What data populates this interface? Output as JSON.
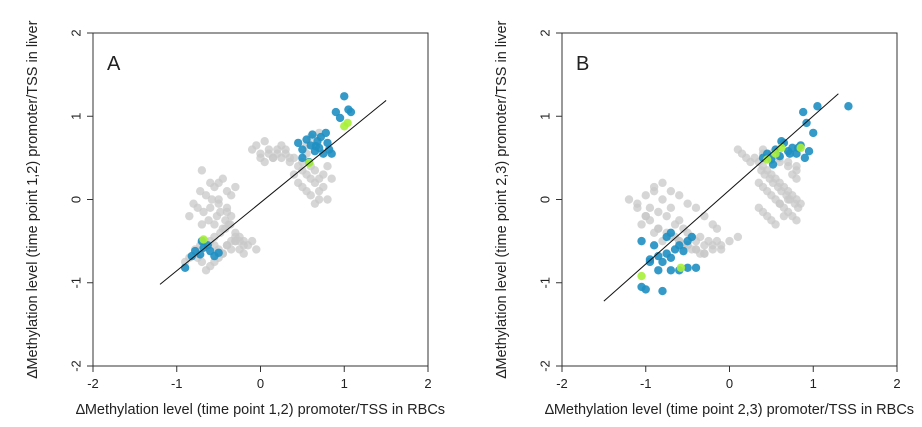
{
  "colors": {
    "gray": "#c8c8c8",
    "blue": "#1f8fc2",
    "green": "#a8f03a",
    "line": "#111111"
  },
  "chart_data": [
    {
      "type": "scatter",
      "panel_label": "A",
      "xlabel": "∆Methylation level (time point 1,2) promoter/TSS in RBCs",
      "ylabel": "∆Methylation level (time point 1,2) promoter/TSS in liver",
      "xlim": [
        -2,
        2
      ],
      "ylim": [
        -2,
        2
      ],
      "xticks": [
        -2,
        -1,
        0,
        1,
        2
      ],
      "yticks": [
        -2,
        -1,
        0,
        1,
        2
      ],
      "grid": false,
      "fit_line": {
        "x": [
          -1.2,
          1.5
        ],
        "y": [
          -1.02,
          1.19
        ]
      },
      "series": [
        {
          "color": "gray",
          "x": [
            -0.85,
            -0.8,
            -0.75,
            -0.72,
            -0.7,
            -0.68,
            -0.65,
            -0.62,
            -0.6,
            -0.58,
            -0.55,
            -0.52,
            -0.5,
            -0.48,
            -0.45,
            -0.42,
            -0.4,
            -0.38,
            -0.35,
            -0.3,
            -0.25,
            -0.2,
            -0.6,
            -0.55,
            -0.5,
            -0.45,
            -0.4,
            -0.35,
            -0.3,
            -0.75,
            -0.7,
            -0.65,
            -0.6,
            -0.55,
            -0.5,
            -0.45,
            -0.4,
            -0.35,
            -0.3,
            -0.25,
            -0.9,
            -0.85,
            -0.78,
            -0.72,
            -0.66,
            -0.55,
            -0.48,
            -0.42,
            -0.36,
            0.0,
            0.05,
            0.1,
            0.15,
            0.2,
            0.25,
            0.3,
            0.35,
            0.4,
            0.45,
            0.5,
            0.55,
            0.6,
            0.65,
            0.7,
            0.75,
            0.8,
            0.4,
            0.45,
            0.5,
            0.55,
            0.6,
            0.65,
            0.7,
            0.5,
            0.55,
            0.6,
            0.65,
            0.7,
            0.75,
            -0.1,
            -0.05,
            0.0,
            0.05,
            0.1,
            0.15,
            -0.7,
            -0.6,
            -0.5,
            -0.4,
            -0.3,
            -0.2,
            -0.1,
            -0.05,
            -0.35,
            -0.3,
            -0.4,
            -0.45,
            -0.5,
            -0.55,
            0.8,
            0.85,
            0.7,
            0.6,
            0.55,
            -0.15,
            -0.2,
            -0.25,
            0.3,
            0.35,
            0.25,
            0.2
          ],
          "y": [
            -0.2,
            -0.05,
            -0.1,
            0.1,
            -0.3,
            -0.15,
            0.05,
            -0.25,
            -0.1,
            0.0,
            -0.3,
            -0.2,
            -0.05,
            -0.15,
            -0.35,
            -0.25,
            -0.1,
            -0.3,
            -0.2,
            -0.4,
            -0.45,
            -0.5,
            -0.5,
            -0.55,
            -0.6,
            -0.65,
            -0.55,
            -0.6,
            -0.5,
            -0.7,
            -0.75,
            -0.85,
            -0.8,
            -0.75,
            -0.7,
            -0.65,
            -0.55,
            -0.5,
            -0.45,
            -0.6,
            -0.75,
            -0.7,
            -0.6,
            -0.55,
            -0.5,
            -0.45,
            -0.4,
            -0.35,
            -0.3,
            0.5,
            0.45,
            0.55,
            0.5,
            0.6,
            0.5,
            0.55,
            0.45,
            0.5,
            0.4,
            0.35,
            0.3,
            0.25,
            0.2,
            0.1,
            0.15,
            0.0,
            0.3,
            0.2,
            0.15,
            0.1,
            0.05,
            -0.05,
            0.0,
            0.45,
            0.55,
            0.4,
            0.35,
            0.25,
            0.3,
            0.6,
            0.65,
            0.55,
            0.7,
            0.6,
            0.5,
            0.35,
            0.2,
            0.0,
            -0.15,
            -0.5,
            -0.55,
            -0.5,
            -0.6,
            0.05,
            0.15,
            0.1,
            0.25,
            0.2,
            0.15,
            0.4,
            0.25,
            0.8,
            0.75,
            0.65,
            -0.55,
            -0.65,
            -0.5,
            0.6,
            0.5,
            0.65,
            0.55
          ]
        },
        {
          "color": "blue",
          "x": [
            -0.9,
            -0.82,
            -0.78,
            -0.72,
            -0.68,
            -0.63,
            -0.6,
            -0.55,
            -0.5,
            -0.7,
            0.45,
            0.5,
            0.55,
            0.6,
            0.62,
            0.65,
            0.68,
            0.7,
            0.72,
            0.75,
            0.78,
            0.8,
            0.82,
            0.85,
            0.9,
            0.95,
            1.0,
            1.05,
            1.08,
            0.5,
            0.58,
            0.66
          ],
          "y": [
            -0.82,
            -0.68,
            -0.62,
            -0.66,
            -0.58,
            -0.55,
            -0.62,
            -0.68,
            -0.64,
            -0.5,
            0.68,
            0.6,
            0.72,
            0.65,
            0.78,
            0.58,
            0.7,
            0.62,
            0.75,
            0.55,
            0.8,
            0.68,
            0.6,
            0.55,
            1.05,
            0.98,
            1.24,
            1.08,
            1.05,
            0.5,
            0.45,
            0.64
          ]
        },
        {
          "color": "green",
          "x": [
            -0.68,
            0.58,
            1.0,
            1.04
          ],
          "y": [
            -0.48,
            0.44,
            0.88,
            0.92
          ]
        }
      ]
    },
    {
      "type": "scatter",
      "panel_label": "B",
      "xlabel": "∆Methylation level (time point 2,3) promoter/TSS in RBCs",
      "ylabel": "∆Methylation level (time point 2,3) promoter/TSS in liver",
      "xlim": [
        -2,
        2
      ],
      "ylim": [
        -2,
        2
      ],
      "xticks": [
        -2,
        -1,
        0,
        1,
        2
      ],
      "yticks": [
        -2,
        -1,
        0,
        1,
        2
      ],
      "grid": false,
      "fit_line": {
        "x": [
          -1.5,
          1.3
        ],
        "y": [
          -1.22,
          1.27
        ]
      },
      "series": [
        {
          "color": "gray",
          "x": [
            -1.2,
            -1.1,
            -1.0,
            -0.95,
            -0.9,
            -0.85,
            -0.8,
            -0.75,
            -0.7,
            -0.65,
            -0.6,
            -0.55,
            -0.5,
            -0.45,
            -0.4,
            -0.35,
            -0.3,
            -0.25,
            -0.2,
            -0.15,
            -0.1,
            -1.05,
            -1.0,
            -0.9,
            -0.85,
            -0.8,
            -0.7,
            -0.6,
            -0.5,
            -0.4,
            -0.3,
            -0.9,
            -0.8,
            -0.7,
            -0.6,
            -0.5,
            -0.4,
            -0.3,
            -0.2,
            -0.15,
            -1.1,
            -1.0,
            -0.95,
            -0.85,
            -0.75,
            -0.65,
            -0.55,
            -0.45,
            -0.35,
            0.35,
            0.4,
            0.45,
            0.5,
            0.55,
            0.6,
            0.65,
            0.7,
            0.75,
            0.8,
            0.85,
            0.35,
            0.4,
            0.45,
            0.5,
            0.55,
            0.6,
            0.65,
            0.7,
            0.75,
            0.8,
            0.35,
            0.4,
            0.45,
            0.5,
            0.55,
            0.6,
            0.65,
            0.7,
            0.75,
            0.8,
            0.38,
            0.42,
            0.48,
            0.52,
            0.58,
            0.62,
            0.68,
            0.72,
            0.78,
            0.82,
            0.4,
            0.5,
            0.6,
            0.7,
            0.8,
            0.4,
            0.5,
            0.6,
            0.7,
            0.8,
            0.1,
            0.15,
            0.2,
            0.25,
            0.3,
            -0.6,
            -0.5,
            -0.4,
            -0.3,
            -0.2,
            -0.1,
            0.0,
            0.1
          ],
          "y": [
            0.0,
            -0.05,
            0.05,
            -0.1,
            0.1,
            -0.15,
            0.0,
            -0.2,
            -0.1,
            -0.3,
            -0.25,
            -0.35,
            -0.4,
            -0.45,
            -0.5,
            -0.45,
            -0.55,
            -0.5,
            -0.55,
            -0.5,
            -0.6,
            -0.3,
            -0.2,
            -0.4,
            -0.35,
            -0.5,
            -0.45,
            -0.5,
            -0.55,
            -0.6,
            -0.65,
            0.15,
            0.2,
            0.1,
            0.05,
            -0.05,
            -0.1,
            -0.2,
            -0.3,
            -0.35,
            -0.1,
            -0.2,
            -0.25,
            -0.35,
            -0.4,
            -0.45,
            -0.55,
            -0.6,
            -0.65,
            0.45,
            0.4,
            0.35,
            0.3,
            0.25,
            0.2,
            0.15,
            0.1,
            0.05,
            0.0,
            -0.05,
            0.2,
            0.15,
            0.1,
            0.05,
            0.0,
            -0.05,
            -0.1,
            -0.15,
            -0.2,
            -0.25,
            -0.1,
            -0.15,
            -0.2,
            -0.25,
            -0.3,
            -0.05,
            -0.2,
            0.0,
            0.3,
            0.25,
            0.35,
            0.3,
            0.25,
            0.2,
            0.15,
            0.1,
            0.05,
            0.0,
            -0.05,
            -0.1,
            0.55,
            0.5,
            0.45,
            0.4,
            0.35,
            0.6,
            0.55,
            0.5,
            0.45,
            0.4,
            0.6,
            0.55,
            0.5,
            0.45,
            0.5,
            -0.5,
            -0.55,
            -0.6,
            -0.65,
            -0.6,
            -0.55,
            -0.5,
            -0.45
          ]
        },
        {
          "color": "blue",
          "x": [
            -1.05,
            -1.0,
            -0.95,
            -0.9,
            -0.85,
            -0.8,
            -0.75,
            -0.7,
            -0.65,
            -0.6,
            -0.55,
            -0.5,
            -0.45,
            -0.4,
            -0.8,
            -0.7,
            -0.6,
            -0.75,
            -1.05,
            -0.95,
            -0.85,
            0.4,
            0.45,
            0.5,
            0.55,
            0.6,
            0.65,
            0.7,
            0.75,
            0.8,
            0.85,
            0.9,
            0.95,
            1.0,
            1.05,
            0.88,
            0.92,
            1.42,
            0.52,
            0.62,
            0.72,
            0.82,
            -0.7,
            -0.5
          ],
          "y": [
            -1.05,
            -1.08,
            -0.75,
            -0.55,
            -0.85,
            -1.1,
            -0.65,
            -0.7,
            -0.6,
            -0.55,
            -0.62,
            -0.5,
            -0.45,
            -0.82,
            -0.75,
            -0.85,
            -0.85,
            -0.45,
            -0.5,
            -0.72,
            -0.68,
            0.5,
            0.55,
            0.48,
            0.6,
            0.52,
            0.68,
            0.58,
            0.62,
            0.55,
            0.65,
            0.5,
            0.58,
            0.8,
            1.12,
            1.05,
            0.92,
            1.12,
            0.42,
            0.7,
            0.55,
            0.62,
            -0.4,
            -0.82
          ]
        },
        {
          "color": "green",
          "x": [
            -1.05,
            -0.58,
            0.45,
            0.55,
            0.62,
            0.85
          ],
          "y": [
            -0.92,
            -0.82,
            0.48,
            0.55,
            0.62,
            0.62
          ]
        }
      ]
    }
  ]
}
